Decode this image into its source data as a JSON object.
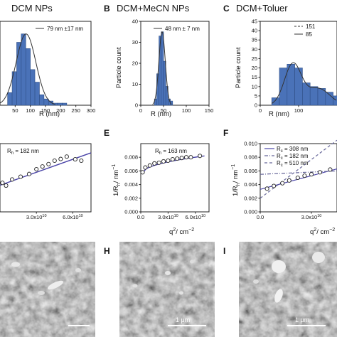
{
  "panels": {
    "A": {
      "letter": "",
      "title": "DCM NPs"
    },
    "B": {
      "letter": "B",
      "title": "DCM+MeCN NPs"
    },
    "C": {
      "letter": "C",
      "title": "DCM+Toluer"
    },
    "E": {
      "letter": "E"
    },
    "F": {
      "letter": "F"
    },
    "H": {
      "letter": "H"
    },
    "I": {
      "letter": "I"
    }
  },
  "colors": {
    "bar": "#4a72b8",
    "bar_edge": "#2f4f86",
    "fit": "#333333",
    "line": "#4b45a8",
    "dash": "#666699",
    "sem_bg": "#8f8f8f",
    "scale": "#ffffff"
  },
  "chart_data": [
    {
      "id": "A",
      "type": "bar",
      "title": "DCM NPs",
      "xlabel": "R (nm)",
      "ylabel": "",
      "xlim": [
        0,
        300
      ],
      "ylim": [
        0,
        40
      ],
      "xticks": [
        "50",
        "100",
        "150",
        "200",
        "250",
        "300"
      ],
      "bins": [
        [
          25,
          40
        ],
        [
          40,
          55
        ],
        [
          55,
          70
        ],
        [
          70,
          85
        ],
        [
          85,
          100
        ],
        [
          100,
          115
        ],
        [
          115,
          130
        ],
        [
          130,
          145
        ],
        [
          145,
          160
        ],
        [
          160,
          175
        ],
        [
          175,
          190
        ],
        [
          190,
          205
        ],
        [
          205,
          220
        ]
      ],
      "values": [
        6,
        16,
        30,
        34,
        27,
        17,
        11,
        5,
        3,
        2,
        1,
        1,
        1
      ],
      "legend": "79 nm ±17 nm",
      "legend_pos": "top-right",
      "fit": "gaussian"
    },
    {
      "id": "B",
      "type": "bar",
      "title": "DCM+MeCN NPs",
      "xlabel": "R (nm)",
      "ylabel": "Particle count",
      "xlim": [
        0,
        150
      ],
      "ylim": [
        0,
        40
      ],
      "xticks": [
        "0",
        "50",
        "100",
        "150"
      ],
      "yticks": [
        "0",
        "10",
        "20",
        "30",
        "40"
      ],
      "bins": [
        [
          30,
          35
        ],
        [
          35,
          40
        ],
        [
          40,
          45
        ],
        [
          45,
          50
        ],
        [
          50,
          55
        ],
        [
          55,
          60
        ],
        [
          60,
          65
        ],
        [
          65,
          70
        ]
      ],
      "values": [
        3,
        15,
        33,
        35,
        21,
        9,
        3,
        2
      ],
      "legend": "48 nm ± 7 nm",
      "legend_pos": "top-right",
      "fit": "gaussian"
    },
    {
      "id": "C",
      "type": "bar",
      "title": "DCM+Toluer",
      "xlabel": "R (nm)",
      "ylabel": "Particle count",
      "xlim": [
        0,
        200
      ],
      "ylim": [
        0,
        45
      ],
      "xticks": [
        "0",
        "100",
        "200"
      ],
      "yticks": [
        "0",
        "5",
        "10",
        "15",
        "20",
        "25",
        "30",
        "35",
        "40",
        "45"
      ],
      "bins": [
        [
          30,
          50
        ],
        [
          50,
          70
        ],
        [
          70,
          90
        ],
        [
          90,
          110
        ],
        [
          110,
          130
        ],
        [
          130,
          150
        ],
        [
          150,
          170
        ],
        [
          170,
          190
        ],
        [
          190,
          210
        ]
      ],
      "values": [
        4,
        20,
        22,
        20,
        12,
        10,
        9,
        7,
        5
      ],
      "legend": [
        "151",
        "85"
      ],
      "legend_pos": "top-right",
      "fit": "bimodal"
    },
    {
      "id": "D",
      "type": "scatter",
      "xlabel": "",
      "ylabel": "",
      "xlim": [
        0,
        75000000000.0
      ],
      "ylim": [
        0.0045,
        0.0065
      ],
      "xticks": [
        "3.0x10",
        "6.0x10"
      ],
      "tick_exp": "10",
      "x": [
        2000000000.0,
        5000000000.0,
        10000000000.0,
        17000000000.0,
        24000000000.0,
        30000000000.0,
        35000000000.0,
        40000000000.0,
        45000000000.0,
        50000000000.0,
        55000000000.0,
        62000000000.0,
        67000000000.0
      ],
      "y": [
        0.00535,
        0.00527,
        0.00545,
        0.00553,
        0.00561,
        0.00575,
        0.00583,
        0.0059,
        0.006,
        0.00605,
        0.00612,
        0.00604,
        0.006
      ],
      "fit": {
        "x": [
          0,
          75000000000.0
        ],
        "y": [
          0.00528,
          0.00623
        ]
      },
      "legend": "R = 182 nm",
      "legend_sub": "h"
    },
    {
      "id": "E",
      "type": "scatter",
      "xlabel": "q / cm",
      "ylabel": "1/R / nm",
      "xlim": [
        0,
        75000000000.0
      ],
      "ylim": [
        0,
        0.01
      ],
      "xticks": [
        "0.0",
        "3.0x10",
        "6.0x10"
      ],
      "tick_exp": "10",
      "yticks": [
        "0.000",
        "0.002",
        "0.004",
        "0.006",
        "0.008"
      ],
      "x": [
        2000000000.0,
        5000000000.0,
        10000000000.0,
        15000000000.0,
        20000000000.0,
        25000000000.0,
        30000000000.0,
        35000000000.0,
        40000000000.0,
        45000000000.0,
        50000000000.0,
        55000000000.0,
        65000000000.0
      ],
      "y": [
        0.0058,
        0.0065,
        0.0068,
        0.0071,
        0.0072,
        0.0074,
        0.0075,
        0.0077,
        0.0078,
        0.0079,
        0.008,
        0.008,
        0.0082
      ],
      "fit": {
        "x": [
          3000000000.0,
          70000000000.0
        ],
        "curve": "sqrt",
        "y0": 0.0058,
        "y1": 0.0082
      },
      "legend": "R = 163 nm",
      "legend_sub": "h"
    },
    {
      "id": "F",
      "type": "scatter",
      "xlabel": "q / cm",
      "ylabel": "1/R / nm",
      "xlim": [
        0,
        45000000000.0
      ],
      "ylim": [
        0,
        0.01
      ],
      "xticks": [
        "0.0",
        "3.0x10"
      ],
      "tick_exp": "10",
      "yticks": [
        "0.000",
        "0.002",
        "0.004",
        "0.006",
        "0.008",
        "0.010"
      ],
      "x": [
        4000000000.0,
        8000000000.0,
        13000000000.0,
        17000000000.0,
        22000000000.0,
        26000000000.0,
        30000000000.0,
        35000000000.0,
        41000000000.0
      ],
      "y": [
        0.0034,
        0.0038,
        0.0042,
        0.0046,
        0.005,
        0.0053,
        0.0055,
        0.0058,
        0.0062
      ],
      "lines": [
        {
          "legend": "R = 308 nm",
          "legend_sub": "c",
          "style": "solid",
          "x": [
            0,
            45000000000.0
          ],
          "y": [
            0.0033,
            0.0063
          ]
        },
        {
          "legend": "R = 182 nm",
          "legend_sub": "c",
          "style": "dashdot",
          "x": [
            0,
            45000000000.0
          ],
          "y": [
            0.0055,
            0.006
          ]
        },
        {
          "legend": "R = 510 nm",
          "legend_sub": "c",
          "style": "dash",
          "x": [
            0,
            45000000000.0
          ],
          "y": [
            0.002,
            0.0105
          ]
        }
      ]
    }
  ],
  "axis_labels": {
    "r_nm": "R (nm)",
    "particle_count": "Particle count",
    "q_base": "q",
    "q_sup": "2",
    "q_unit": "/ cm",
    "q_unit_sup": "−2",
    "y_inv": "1/R",
    "y_sub": "h",
    "y_unit": "/ nm",
    "y_unit_sup": "−1"
  },
  "scale_bars": {
    "G": "",
    "H": "1 μm",
    "I": "1 μm"
  }
}
